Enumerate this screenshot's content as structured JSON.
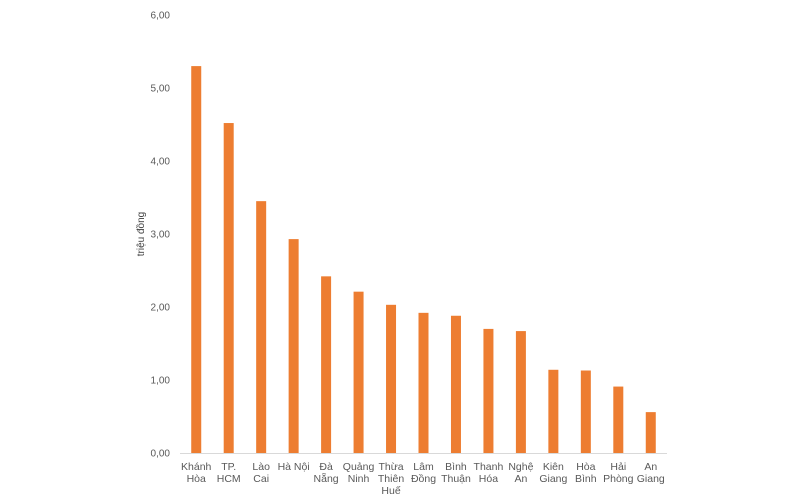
{
  "chart_data": {
    "type": "bar",
    "title": "",
    "xlabel": "",
    "ylabel": "triệu đồng",
    "ylim": [
      0,
      6
    ],
    "yticks": [
      "0,00",
      "1,00",
      "2,00",
      "3,00",
      "4,00",
      "5,00",
      "6,00"
    ],
    "grid": false,
    "legend": "none",
    "bar_color": "#ED7D31",
    "categories": [
      [
        "Khánh",
        "Hòa"
      ],
      [
        "TP.",
        "HCM"
      ],
      [
        "Lào",
        "Cai"
      ],
      [
        "Hà Nội"
      ],
      [
        "Đà",
        "Nẵng"
      ],
      [
        "Quảng",
        "Ninh"
      ],
      [
        "Thừa",
        "Thiên",
        "Huế"
      ],
      [
        "Lâm",
        "Đồng"
      ],
      [
        "Bình",
        "Thuận"
      ],
      [
        "Thanh",
        "Hóa"
      ],
      [
        "Nghệ",
        "An"
      ],
      [
        "Kiên",
        "Giang"
      ],
      [
        "Hòa",
        "Bình"
      ],
      [
        "Hải",
        "Phòng"
      ],
      [
        "An",
        "Giang"
      ]
    ],
    "values": [
      5.3,
      4.52,
      3.45,
      2.93,
      2.42,
      2.21,
      2.03,
      1.92,
      1.88,
      1.7,
      1.67,
      1.14,
      1.13,
      0.91,
      0.56
    ]
  }
}
